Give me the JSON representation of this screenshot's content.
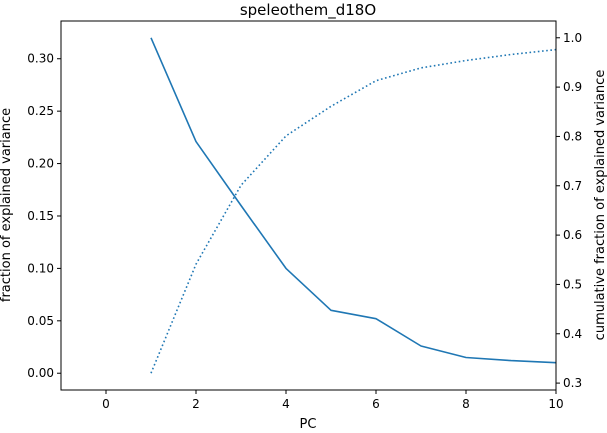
{
  "chart_data": {
    "type": "line",
    "title": "speleothem_d18O",
    "xlabel": "PC",
    "ylabel_left": "fraction of explained variance",
    "ylabel_right": "cumulative fraction of explained variance",
    "xlim": [
      -1,
      10
    ],
    "ylim_left": [
      -0.016,
      0.336
    ],
    "ylim_right": [
      0.286,
      1.034
    ],
    "x_ticks": [
      0,
      2,
      4,
      6,
      8,
      10
    ],
    "y_ticks_left": [
      0.0,
      0.05,
      0.1,
      0.15,
      0.2,
      0.25,
      0.3
    ],
    "y_ticks_right": [
      0.3,
      0.4,
      0.5,
      0.6,
      0.7,
      0.8,
      0.9,
      1.0
    ],
    "grid": false,
    "colors": {
      "line": "#1f77b4",
      "axes": "#000000"
    },
    "series": [
      {
        "axis": "left",
        "style": "solid",
        "x": [
          1,
          2,
          3,
          4,
          5,
          6,
          7,
          8,
          9,
          10
        ],
        "values": [
          0.32,
          0.221,
          0.16,
          0.1,
          0.06,
          0.052,
          0.026,
          0.015,
          0.012,
          0.01
        ]
      },
      {
        "axis": "right",
        "style": "dotted",
        "x": [
          1,
          2,
          3,
          4,
          5,
          6,
          7,
          8,
          9,
          10
        ],
        "values": [
          0.32,
          0.541,
          0.701,
          0.801,
          0.861,
          0.913,
          0.939,
          0.954,
          0.966,
          0.976
        ]
      }
    ]
  }
}
